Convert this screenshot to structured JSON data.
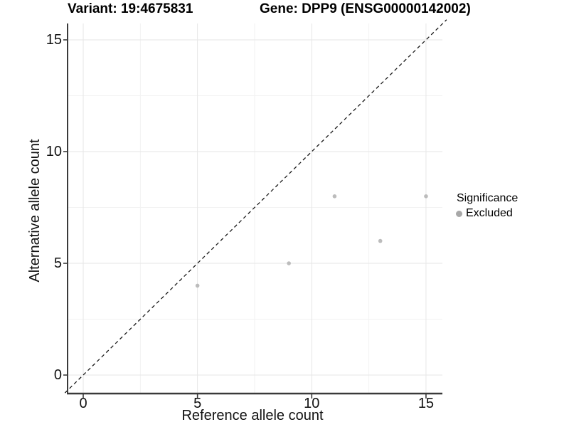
{
  "titles": {
    "variant": "Variant: 19:4675831",
    "gene": "Gene: DPP9 (ENSG00000142002)"
  },
  "axes": {
    "x": {
      "label": "Reference allele count",
      "ticks": [
        "0",
        "5",
        "10",
        "15"
      ],
      "tick_values": [
        0,
        5,
        10,
        15
      ],
      "minor_values": [
        2.5,
        7.5,
        12.5
      ]
    },
    "y": {
      "label": "Alternative allele count",
      "ticks": [
        "0",
        "5",
        "10",
        "15"
      ],
      "tick_values": [
        0,
        5,
        10,
        15
      ],
      "minor_values": [
        2.5,
        7.5,
        12.5
      ]
    }
  },
  "legend": {
    "title": "Significance",
    "entries": [
      {
        "label": "Excluded",
        "color": "#a8a8a8",
        "marker": "circle-icon"
      }
    ]
  },
  "chart_data": {
    "type": "scatter",
    "title": "Variant: 19:4675831 — Gene: DPP9 (ENSG00000142002)",
    "xlabel": "Reference allele count",
    "ylabel": "Alternative allele count",
    "xlim": [
      -0.75,
      15.75
    ],
    "ylim": [
      -0.75,
      15.75
    ],
    "x_ticks": [
      0,
      5,
      10,
      15
    ],
    "y_ticks": [
      0,
      5,
      10,
      15
    ],
    "grid": true,
    "legend_position": "right",
    "series": [
      {
        "name": "Excluded",
        "color": "#bcbcbc",
        "points": [
          [
            5,
            4
          ],
          [
            9,
            5
          ],
          [
            11,
            8
          ],
          [
            13,
            6
          ],
          [
            15,
            8
          ]
        ]
      }
    ],
    "reference_line": {
      "type": "identity",
      "slope": 1,
      "intercept": 0,
      "style": "dashed",
      "color": "#1a1a1a"
    }
  },
  "colors": {
    "point": "#bcbcbc",
    "grid_major": "#e6e6e6",
    "grid_minor": "#f2f2f2",
    "axis": "#3a3a3a",
    "text": "#000000",
    "background": "#ffffff"
  }
}
